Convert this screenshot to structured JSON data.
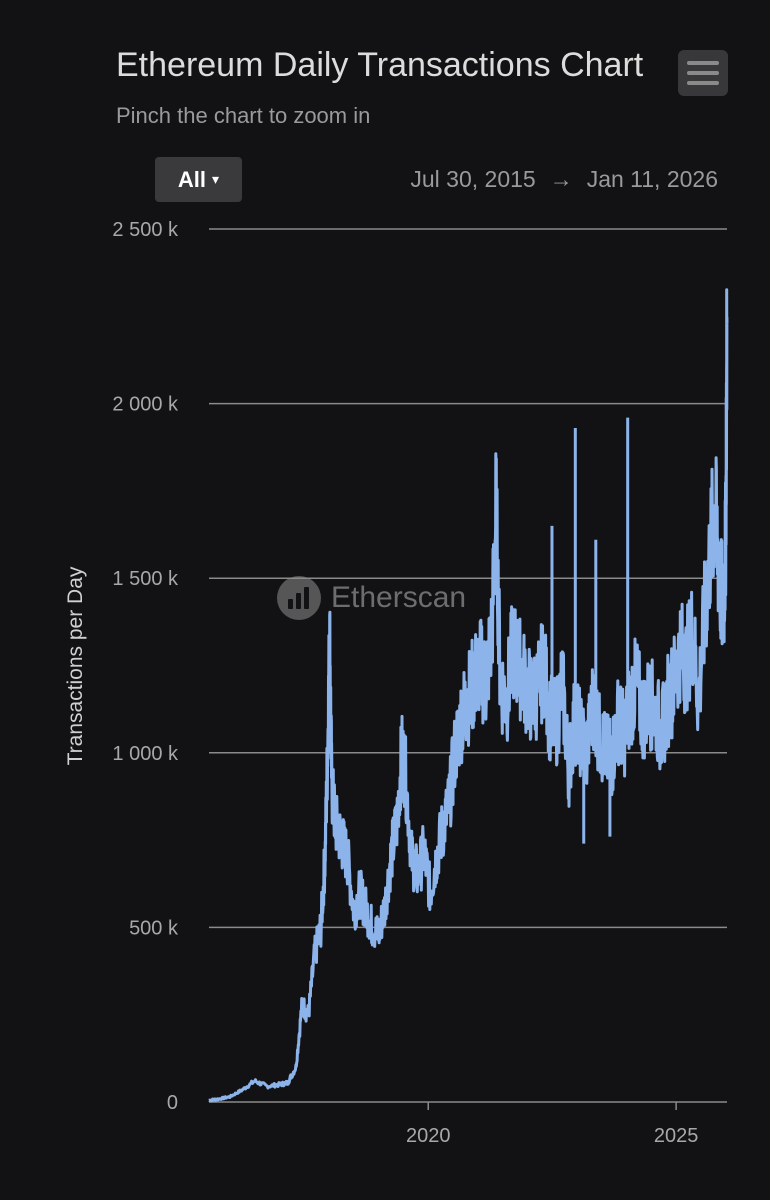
{
  "header": {
    "title": "Ethereum Daily Transactions Chart",
    "subtitle": "Pinch the chart to zoom in"
  },
  "controls": {
    "range_label": "All",
    "range_caret": "▾",
    "date_from": "Jul 30, 2015",
    "date_arrow": "→",
    "date_to": "Jan 11, 2026"
  },
  "watermark": {
    "text": "Etherscan"
  },
  "colors": {
    "background": "#121214",
    "line": "#8db4ea",
    "grid": "#8a8a8a"
  },
  "chart_data": {
    "type": "line",
    "title": "Ethereum Daily Transactions Chart",
    "subtitle": "Pinch the chart to zoom in",
    "ylabel": "Transactions per Day",
    "xlabel": "",
    "xlim": [
      "2015-07-30",
      "2026-01-11"
    ],
    "ylim": [
      0,
      2500000
    ],
    "y_ticks": [
      0,
      500000,
      1000000,
      1500000,
      2000000,
      2500000
    ],
    "y_tick_labels": [
      "0",
      "500 k",
      "1 000 k",
      "1 500 k",
      "2 000 k",
      "2 500 k"
    ],
    "x_ticks": [
      "2020-01-01",
      "2025-01-01"
    ],
    "x_tick_labels": [
      "2020",
      "2025"
    ],
    "grid": "horizontal",
    "series": [
      {
        "x": [
          "2015-07-30",
          "2015-10-01",
          "2016-01-01",
          "2016-04-01",
          "2016-07-01",
          "2016-10-01",
          "2017-01-01",
          "2017-03-01",
          "2017-05-01",
          "2017-06-15",
          "2017-08-01",
          "2017-09-15",
          "2017-11-01",
          "2017-12-01",
          "2017-12-20",
          "2018-01-04",
          "2018-01-20",
          "2018-02-15",
          "2018-04-01",
          "2018-05-15",
          "2018-07-01",
          "2018-08-15",
          "2018-10-01",
          "2018-11-15",
          "2019-01-01",
          "2019-02-15",
          "2019-04-01",
          "2019-05-15",
          "2019-06-20",
          "2019-07-15",
          "2019-09-01",
          "2019-10-15",
          "2019-12-01",
          "2020-01-15",
          "2020-03-01",
          "2020-04-15",
          "2020-06-01",
          "2020-07-15",
          "2020-09-01",
          "2020-10-15",
          "2020-12-01",
          "2021-01-15",
          "2021-03-01",
          "2021-04-15",
          "2021-05-15",
          "2021-06-15",
          "2021-08-01",
          "2021-09-15",
          "2021-11-01",
          "2021-12-15",
          "2022-02-01",
          "2022-03-15",
          "2022-05-01",
          "2022-06-15",
          "2022-08-01",
          "2022-09-15",
          "2022-11-01",
          "2022-12-15",
          "2023-02-01",
          "2023-03-15",
          "2023-05-01",
          "2023-06-15",
          "2023-08-01",
          "2023-09-15",
          "2023-11-01",
          "2023-12-15",
          "2024-02-01",
          "2024-03-15",
          "2024-05-01",
          "2024-06-15",
          "2024-08-01",
          "2024-09-15",
          "2024-11-01",
          "2024-12-15",
          "2025-02-01",
          "2025-03-15",
          "2025-05-01",
          "2025-06-15",
          "2025-08-01",
          "2025-09-15",
          "2025-10-15",
          "2025-11-15",
          "2025-12-15",
          "2026-01-01",
          "2026-01-11"
        ],
        "y": [
          5000,
          8000,
          15000,
          35000,
          60000,
          45000,
          50000,
          55000,
          100000,
          280000,
          250000,
          420000,
          500000,
          700000,
          1000000,
          1350000,
          900000,
          800000,
          750000,
          700000,
          550000,
          600000,
          550000,
          500000,
          480000,
          560000,
          700000,
          800000,
          1000000,
          950000,
          700000,
          650000,
          720000,
          600000,
          700000,
          780000,
          850000,
          1000000,
          1100000,
          1150000,
          1200000,
          1250000,
          1200000,
          1350000,
          1700000,
          1200000,
          1150000,
          1300000,
          1250000,
          1200000,
          1150000,
          1180000,
          1250000,
          1100000,
          1080000,
          1200000,
          950000,
          1100000,
          1050000,
          1000000,
          1150000,
          1050000,
          1000000,
          980000,
          1100000,
          1050000,
          1150000,
          1200000,
          1100000,
          1150000,
          1120000,
          1050000,
          1150000,
          1200000,
          1300000,
          1250000,
          1350000,
          1150000,
          1400000,
          1600000,
          1700000,
          1500000,
          1400000,
          1600000,
          2230000
        ]
      }
    ],
    "spikes": [
      {
        "x": "2022-12-20",
        "y": 1930000
      },
      {
        "x": "2024-01-10",
        "y": 1960000
      },
      {
        "x": "2022-07-01",
        "y": 1650000
      },
      {
        "x": "2023-05-20",
        "y": 1610000
      },
      {
        "x": "2023-02-20",
        "y": 740000
      },
      {
        "x": "2023-09-01",
        "y": 760000
      }
    ]
  }
}
